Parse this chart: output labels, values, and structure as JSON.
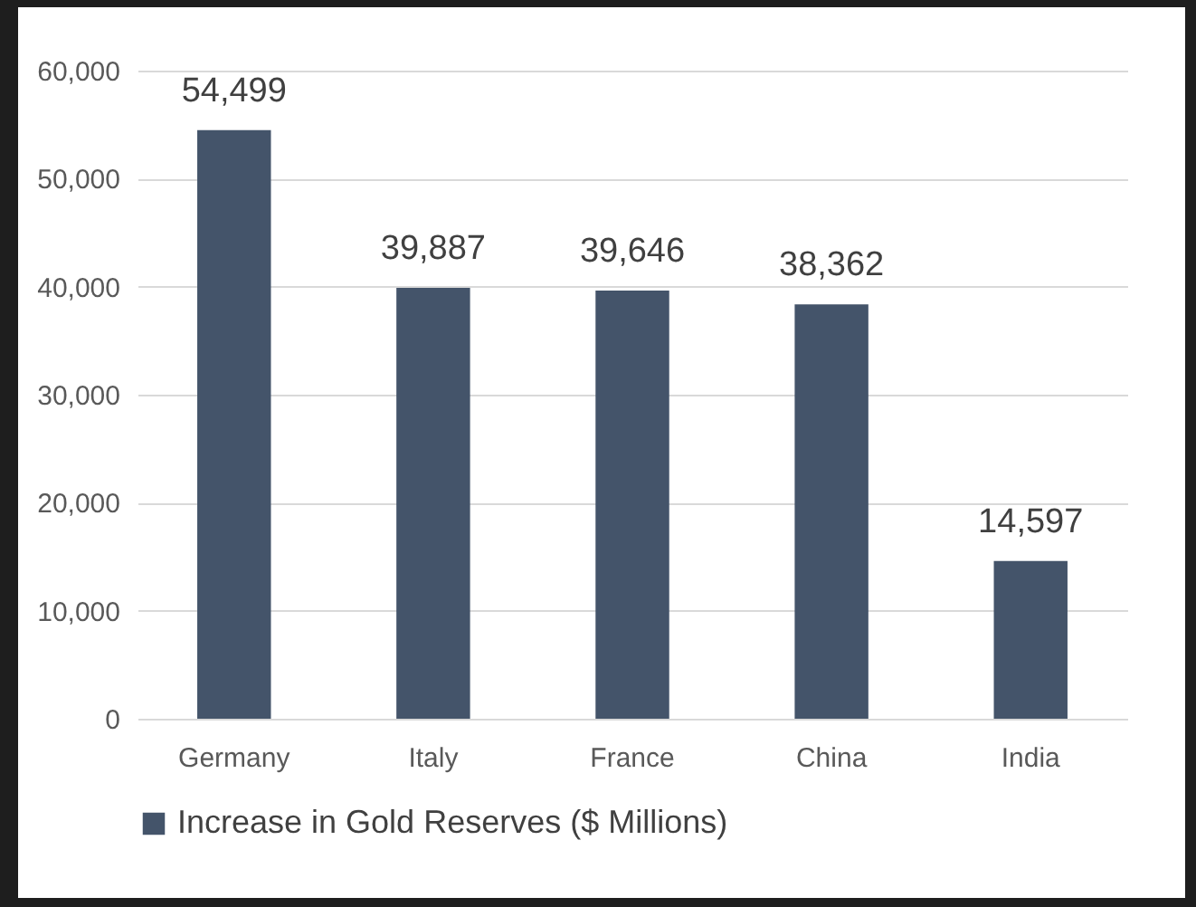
{
  "chart_data": {
    "type": "bar",
    "categories": [
      "Germany",
      "Italy",
      "France",
      "China",
      "India"
    ],
    "series": [
      {
        "name": "Increase in Gold Reserves ($ Millions)",
        "color": "#44546a",
        "values": [
          54499,
          39887,
          39646,
          38362,
          14597
        ],
        "value_labels": [
          "54,499",
          "39,887",
          "39,646",
          "38,362",
          "14,597"
        ]
      }
    ],
    "ylim": [
      0,
      60000
    ],
    "yticks": [
      0,
      {
        "value": 10000,
        "label": "10,000"
      },
      {
        "value": 20000,
        "label": "20,000"
      },
      {
        "value": 30000,
        "label": "30,000"
      },
      {
        "value": 40000,
        "label": "40,000"
      },
      {
        "value": 50000,
        "label": "50,000"
      },
      {
        "value": 60000,
        "label": "60,000"
      }
    ],
    "grid": "y",
    "legend": "bottom"
  }
}
